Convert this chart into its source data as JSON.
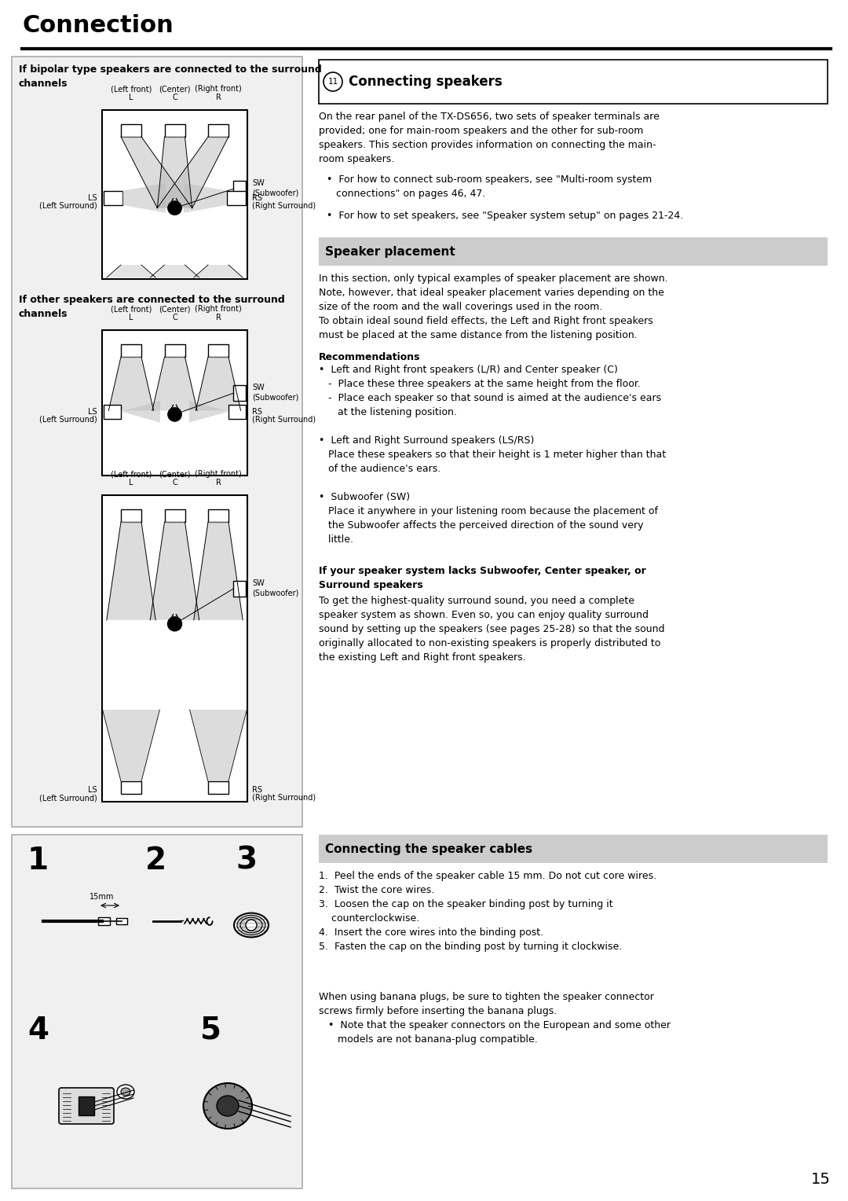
{
  "page_title": "Connection",
  "bg_color": "#ffffff",
  "left_box_bg": "#eeeeee",
  "header_bar_color": "#cccccc",
  "box_title1": "If bipolar type speakers are connected to the surround\nchannels",
  "box_title2": "If other speakers are connected to the surround\nchannels",
  "section11_title": "Connecting speakers",
  "section11_intro": "On the rear panel of the TX-DS656, two sets of speaker terminals are\nprovided; one for main-room speakers and the other for sub-room\nspeakers. This section provides information on connecting the main-\nroom speakers.",
  "section11_bullet1": "•  For how to connect sub-room speakers, see \"Multi-room system\n   connections\" on pages 46, 47.",
  "section11_bullet2": "•  For how to set speakers, see \"Speaker system setup\" on pages 21-24.",
  "speaker_placement_title": "Speaker placement",
  "speaker_placement_body": "In this section, only typical examples of speaker placement are shown.\nNote, however, that ideal speaker placement varies depending on the\nsize of the room and the wall coverings used in the room.\nTo obtain ideal sound field effects, the Left and Right front speakers\nmust be placed at the same distance from the listening position.",
  "recommendations_title": "Recommendations",
  "rec_bullet1": "•  Left and Right front speakers (L/R) and Center speaker (C)",
  "rec_sub1a": "-  Place these three speakers at the same height from the floor.",
  "rec_sub1b": "-  Place each speaker so that sound is aimed at the audience's ears\n   at the listening position.",
  "rec_bullet2": "•  Left and Right Surround speakers (LS/RS)",
  "rec_body2": "Place these speakers so that their height is 1 meter higher than that\nof the audience's ears.",
  "rec_bullet3": "•  Subwoofer (SW)",
  "rec_body3": "Place it anywhere in your listening room because the placement of\nthe Subwoofer affects the perceived direction of the sound very\nlittle.",
  "lacks_title": "If your speaker system lacks Subwoofer, Center speaker, or\nSurround speakers",
  "lacks_body": "To get the highest-quality surround sound, you need a complete\nspeaker system as shown. Even so, you can enjoy quality surround\nsound by setting up the speakers (see pages 25-28) so that the sound\noriginally allocated to non-existing speakers is properly distributed to\nthe existing Left and Right front speakers.",
  "connecting_cables_title": "Connecting the speaker cables",
  "cc_body": "1.  Peel the ends of the speaker cable 15 mm. Do not cut core wires.\n2.  Twist the core wires.\n3.  Loosen the cap on the speaker binding post by turning it\n    counterclockwise.\n4.  Insert the core wires into the binding post.\n5.  Fasten the cap on the binding post by turning it clockwise.",
  "banana_text": "When using banana plugs, be sure to tighten the speaker connector\nscrews firmly before inserting the banana plugs.\n  •  Note that the speaker connectors on the European and some other\n     models are not banana-plug compatible.",
  "page_number": "15"
}
